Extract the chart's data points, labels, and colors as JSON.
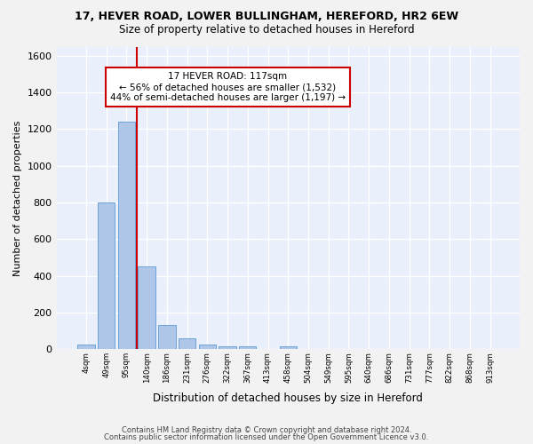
{
  "title1": "17, HEVER ROAD, LOWER BULLINGHAM, HEREFORD, HR2 6EW",
  "title2": "Size of property relative to detached houses in Hereford",
  "xlabel": "Distribution of detached houses by size in Hereford",
  "ylabel": "Number of detached properties",
  "bar_color": "#aec6e8",
  "bar_edge_color": "#5b9bd5",
  "bg_color": "#eaf0fb",
  "grid_color": "#ffffff",
  "bin_labels": [
    "4sqm",
    "49sqm",
    "95sqm",
    "140sqm",
    "186sqm",
    "231sqm",
    "276sqm",
    "322sqm",
    "367sqm",
    "413sqm",
    "458sqm",
    "504sqm",
    "549sqm",
    "595sqm",
    "640sqm",
    "686sqm",
    "731sqm",
    "777sqm",
    "822sqm",
    "868sqm",
    "913sqm"
  ],
  "bar_values": [
    25,
    800,
    1240,
    450,
    130,
    60,
    25,
    15,
    15,
    0,
    15,
    0,
    0,
    0,
    0,
    0,
    0,
    0,
    0,
    0,
    0
  ],
  "ylim": [
    0,
    1650
  ],
  "yticks": [
    0,
    200,
    400,
    600,
    800,
    1000,
    1200,
    1400,
    1600
  ],
  "red_line_bin": 2.49,
  "annotation_text": "17 HEVER ROAD: 117sqm\n← 56% of detached houses are smaller (1,532)\n44% of semi-detached houses are larger (1,197) →",
  "annotation_box_color": "#ffffff",
  "annotation_box_edge": "#cc0000",
  "red_line_color": "#cc0000",
  "fig_bg_color": "#f2f2f2",
  "footer1": "Contains HM Land Registry data © Crown copyright and database right 2024.",
  "footer2": "Contains public sector information licensed under the Open Government Licence v3.0."
}
